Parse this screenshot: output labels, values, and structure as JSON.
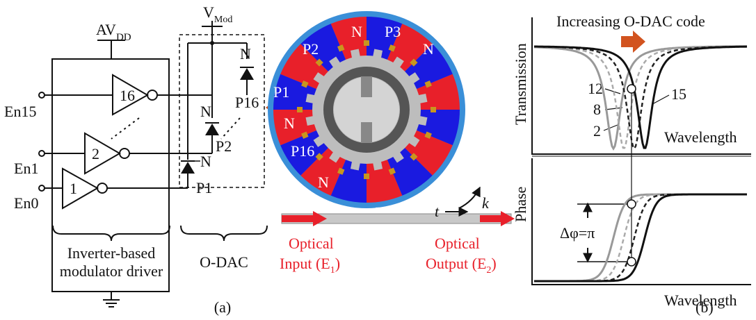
{
  "circuit": {
    "supply": {
      "base": "AV",
      "sub": "DD"
    },
    "inverters": [
      {
        "label": "16",
        "input": "En15"
      },
      {
        "label": "2",
        "input": "En1"
      },
      {
        "label": "1",
        "input": "En0"
      }
    ],
    "caption": [
      "Inverter-based",
      "modulator driver"
    ]
  },
  "odac": {
    "supply": {
      "base": "V",
      "sub": "Mod"
    },
    "diodes": [
      {
        "n": "N",
        "p": "P16"
      },
      {
        "n": "N",
        "p": "P2"
      },
      {
        "n": "N",
        "p": "P1"
      }
    ],
    "caption": "O-DAC"
  },
  "ring": {
    "segments": [
      "P2",
      "N",
      "P3",
      "N",
      "P1",
      "N",
      "P16",
      "N"
    ],
    "coupling": "k",
    "transmission": "t",
    "input": {
      "line1": "Optical",
      "line2": "Input (E",
      "sub": "1",
      "close": ")"
    },
    "output": {
      "line1": "Optical",
      "line2": "Output (E",
      "sub": "2",
      "close": ")"
    }
  },
  "panel_a": "(a)",
  "plots": {
    "title": "Increasing O-DAC code",
    "transmission": {
      "ylabel": "Transmission",
      "xlabel": "Wavelength",
      "curves": [
        "12",
        "8",
        "2",
        "15"
      ]
    },
    "phase": {
      "ylabel": "Phase",
      "xlabel": "Wavelength",
      "annotation": "Δφ=π"
    },
    "panel": "(b)"
  }
}
